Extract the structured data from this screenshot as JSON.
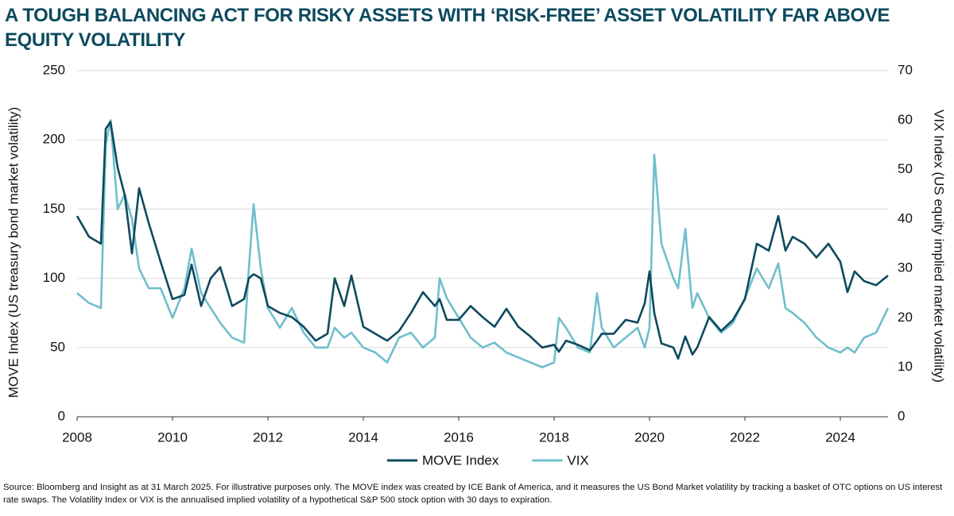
{
  "chart_data": {
    "type": "line",
    "title": "A TOUGH BALANCING ACT FOR RISKY ASSETS WITH ‘RISK-FREE’ ASSET VOLATILITY FAR ABOVE EQUITY VOLATILITY",
    "y_label": "MOVE Index (US treasury bond market volatility)",
    "y2_label": "VIX Index (US equity implied market volatility)",
    "source": "Source: Bloomberg and Insight as at 31 March 2025. For illustrative purposes only. The MOVE index was created by ICE Bank of America, and it measures the US Bond Market volatility by tracking a basket of OTC options on US interest rate swaps. The Volatility Index or VIX is the annualised implied volatility of a hypothetical S&P 500 stock option with 30 days to expiration.",
    "x": [
      2008.0,
      2008.25,
      2008.5,
      2008.6,
      2008.7,
      2008.85,
      2009.0,
      2009.15,
      2009.3,
      2009.5,
      2009.75,
      2010.0,
      2010.25,
      2010.4,
      2010.6,
      2010.8,
      2011.0,
      2011.25,
      2011.5,
      2011.6,
      2011.7,
      2011.85,
      2012.0,
      2012.25,
      2012.5,
      2012.75,
      2013.0,
      2013.25,
      2013.4,
      2013.6,
      2013.75,
      2014.0,
      2014.25,
      2014.5,
      2014.75,
      2015.0,
      2015.25,
      2015.5,
      2015.6,
      2015.75,
      2016.0,
      2016.25,
      2016.5,
      2016.75,
      2017.0,
      2017.25,
      2017.5,
      2017.75,
      2018.0,
      2018.1,
      2018.25,
      2018.5,
      2018.75,
      2018.9,
      2019.0,
      2019.25,
      2019.5,
      2019.75,
      2019.9,
      2020.0,
      2020.1,
      2020.25,
      2020.5,
      2020.6,
      2020.75,
      2020.9,
      2021.0,
      2021.25,
      2021.5,
      2021.75,
      2022.0,
      2022.25,
      2022.5,
      2022.7,
      2022.85,
      2023.0,
      2023.25,
      2023.5,
      2023.75,
      2024.0,
      2024.15,
      2024.3,
      2024.5,
      2024.75,
      2025.0
    ],
    "series": [
      {
        "name": "MOVE Index",
        "color": "#0d4a5e",
        "values": [
          145,
          130,
          125,
          208,
          213,
          180,
          160,
          118,
          165,
          140,
          112,
          85,
          88,
          110,
          80,
          100,
          108,
          80,
          85,
          100,
          103,
          100,
          80,
          75,
          72,
          65,
          55,
          60,
          100,
          80,
          102,
          65,
          60,
          55,
          62,
          75,
          90,
          80,
          85,
          70,
          70,
          80,
          72,
          65,
          78,
          65,
          58,
          50,
          52,
          47,
          55,
          52,
          48,
          55,
          60,
          60,
          70,
          68,
          82,
          105,
          75,
          53,
          50,
          42,
          58,
          45,
          50,
          72,
          62,
          70,
          85,
          125,
          120,
          145,
          120,
          130,
          125,
          115,
          125,
          112,
          90,
          105,
          98,
          95,
          102
        ]
      },
      {
        "name": "VIX",
        "color": "#6fbfcb",
        "axis": "y2",
        "values": [
          25,
          23,
          22,
          55,
          60,
          42,
          45,
          40,
          30,
          26,
          26,
          20,
          26,
          34,
          25,
          22,
          19,
          16,
          15,
          30,
          43,
          30,
          22,
          18,
          22,
          17,
          14,
          14,
          18,
          16,
          17,
          14,
          13,
          11,
          16,
          17,
          14,
          16,
          28,
          24,
          20,
          16,
          14,
          15,
          13,
          12,
          11,
          10,
          11,
          20,
          18,
          14,
          13,
          25,
          18,
          14,
          16,
          18,
          14,
          18,
          53,
          35,
          28,
          26,
          38,
          22,
          25,
          20,
          17,
          19,
          24,
          30,
          26,
          31,
          22,
          21,
          19,
          16,
          14,
          13,
          14,
          13,
          16,
          17,
          22
        ]
      }
    ],
    "xlim": [
      2008,
      2025
    ],
    "xticks": [
      2008,
      2010,
      2012,
      2014,
      2016,
      2018,
      2020,
      2022,
      2024
    ],
    "ylim": [
      0,
      250
    ],
    "yticks": [
      0,
      50,
      100,
      150,
      200,
      250
    ],
    "y2lim": [
      0,
      70
    ],
    "y2ticks": [
      0,
      10,
      20,
      30,
      40,
      50,
      60,
      70
    ],
    "grid": true,
    "legend": "bottom"
  }
}
